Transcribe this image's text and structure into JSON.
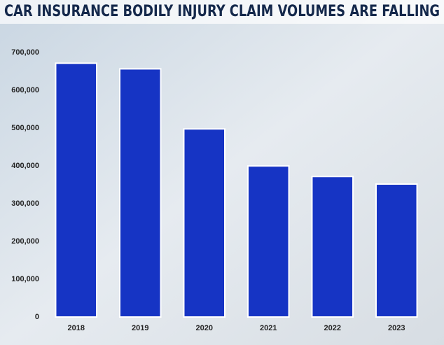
{
  "chart_data": {
    "type": "bar",
    "title": "CAR INSURANCE BODILY INJURY CLAIM VOLUMES ARE FALLING",
    "categories": [
      "2018",
      "2019",
      "2020",
      "2021",
      "2022",
      "2023"
    ],
    "values": [
      672000,
      657000,
      498000,
      400000,
      372000,
      352000
    ],
    "color": "#1634c4",
    "ylim": [
      0,
      730000
    ],
    "yticks": [
      0,
      {
        "value": 100000,
        "label": "100,000"
      },
      {
        "value": 200000,
        "label": "200,000"
      },
      {
        "value": 300000,
        "label": "300,000"
      },
      {
        "value": 400000,
        "label": "400,000"
      },
      {
        "value": 500000,
        "label": "500,000"
      },
      {
        "value": 600000,
        "label": "600,000"
      },
      {
        "value": 700000,
        "label": "700,000"
      }
    ],
    "grid": false
  }
}
